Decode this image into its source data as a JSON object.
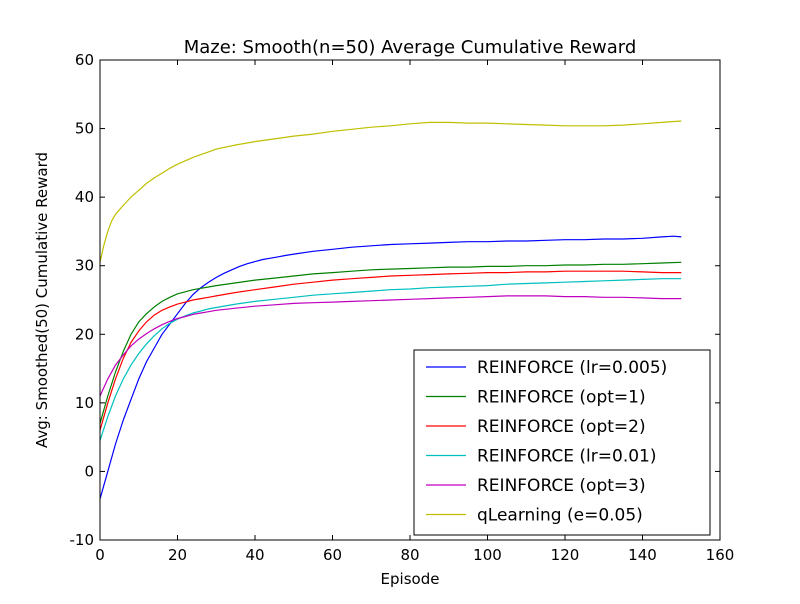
{
  "chart_data": {
    "type": "line",
    "title": "Maze: Smooth(n=50) Average Cumulative Reward",
    "xlabel": "Episode",
    "ylabel": "Avg: Smoothed(50) Cumulative Reward",
    "xlim": [
      0,
      160
    ],
    "ylim": [
      -10,
      60
    ],
    "xticks": [
      0,
      20,
      40,
      60,
      80,
      100,
      120,
      140,
      160
    ],
    "yticks": [
      -10,
      0,
      10,
      20,
      30,
      40,
      50,
      60
    ],
    "grid": false,
    "legend_position": "lower-right",
    "series": [
      {
        "name": "REINFORCE (lr=0.005)",
        "color": "#0000ff",
        "x": [
          0,
          2,
          4,
          6,
          8,
          10,
          12,
          14,
          16,
          18,
          20,
          22,
          24,
          26,
          28,
          30,
          32,
          34,
          36,
          38,
          40,
          42,
          44,
          46,
          48,
          50,
          55,
          60,
          65,
          70,
          75,
          80,
          85,
          90,
          95,
          100,
          105,
          110,
          115,
          120,
          125,
          130,
          135,
          140,
          145,
          148,
          150
        ],
        "y": [
          -4,
          0,
          4,
          7.5,
          10.5,
          13.5,
          16,
          18,
          20,
          21.5,
          23,
          24.5,
          25.8,
          26.8,
          27.6,
          28.3,
          28.9,
          29.4,
          29.9,
          30.3,
          30.6,
          30.9,
          31.1,
          31.3,
          31.5,
          31.7,
          32.1,
          32.4,
          32.7,
          32.9,
          33.1,
          33.2,
          33.3,
          33.4,
          33.5,
          33.5,
          33.6,
          33.6,
          33.7,
          33.8,
          33.8,
          33.9,
          33.9,
          34,
          34.2,
          34.3,
          34.2
        ]
      },
      {
        "name": "REINFORCE (opt=1)",
        "color": "#008000",
        "x": [
          0,
          2,
          4,
          6,
          8,
          10,
          12,
          14,
          16,
          18,
          20,
          22,
          24,
          26,
          28,
          30,
          35,
          40,
          45,
          50,
          55,
          60,
          65,
          70,
          75,
          80,
          85,
          90,
          95,
          100,
          105,
          110,
          115,
          120,
          125,
          130,
          135,
          140,
          145,
          150
        ],
        "y": [
          7,
          11,
          14.5,
          17.5,
          20,
          21.8,
          23,
          24,
          24.8,
          25.4,
          25.9,
          26.2,
          26.5,
          26.7,
          26.9,
          27.1,
          27.5,
          27.9,
          28.2,
          28.5,
          28.8,
          29,
          29.2,
          29.4,
          29.5,
          29.6,
          29.7,
          29.8,
          29.8,
          29.9,
          29.9,
          30,
          30,
          30.1,
          30.1,
          30.2,
          30.2,
          30.3,
          30.4,
          30.5
        ]
      },
      {
        "name": "REINFORCE (opt=2)",
        "color": "#ff0000",
        "x": [
          0,
          2,
          4,
          6,
          8,
          10,
          12,
          14,
          16,
          18,
          20,
          22,
          24,
          26,
          28,
          30,
          35,
          40,
          45,
          50,
          55,
          60,
          65,
          70,
          75,
          80,
          85,
          90,
          95,
          100,
          105,
          110,
          115,
          120,
          125,
          130,
          135,
          140,
          145,
          150
        ],
        "y": [
          6,
          10,
          13.5,
          16.5,
          18.8,
          20.5,
          21.8,
          22.8,
          23.5,
          24,
          24.4,
          24.7,
          25,
          25.2,
          25.4,
          25.6,
          26.1,
          26.5,
          26.9,
          27.3,
          27.6,
          27.9,
          28.1,
          28.3,
          28.5,
          28.6,
          28.7,
          28.8,
          28.9,
          29,
          29,
          29.1,
          29.1,
          29.2,
          29.2,
          29.2,
          29.2,
          29.1,
          29,
          29
        ]
      },
      {
        "name": "REINFORCE (lr=0.01)",
        "color": "#00bfbf",
        "x": [
          0,
          2,
          4,
          6,
          8,
          10,
          12,
          14,
          16,
          18,
          20,
          22,
          24,
          26,
          28,
          30,
          35,
          40,
          45,
          50,
          55,
          60,
          65,
          70,
          75,
          80,
          85,
          90,
          95,
          100,
          105,
          110,
          115,
          120,
          125,
          130,
          135,
          140,
          145,
          150
        ],
        "y": [
          4.5,
          8,
          11,
          13.5,
          15.5,
          17.2,
          18.6,
          19.8,
          20.8,
          21.6,
          22.2,
          22.7,
          23.1,
          23.4,
          23.7,
          23.9,
          24.4,
          24.8,
          25.1,
          25.4,
          25.7,
          25.9,
          26.1,
          26.3,
          26.5,
          26.6,
          26.8,
          26.9,
          27,
          27.1,
          27.3,
          27.4,
          27.5,
          27.6,
          27.7,
          27.8,
          27.9,
          28,
          28.1,
          28.1
        ]
      },
      {
        "name": "REINFORCE (opt=3)",
        "color": "#bf00bf",
        "x": [
          0,
          2,
          4,
          6,
          8,
          10,
          12,
          14,
          16,
          18,
          20,
          22,
          24,
          26,
          28,
          30,
          35,
          40,
          45,
          50,
          55,
          60,
          65,
          70,
          75,
          80,
          85,
          90,
          95,
          100,
          105,
          110,
          115,
          120,
          125,
          130,
          135,
          140,
          145,
          150
        ],
        "y": [
          11,
          13.5,
          15.5,
          17,
          18.3,
          19.3,
          20.1,
          20.8,
          21.4,
          21.9,
          22.3,
          22.6,
          22.9,
          23.1,
          23.3,
          23.5,
          23.8,
          24.1,
          24.3,
          24.5,
          24.6,
          24.7,
          24.8,
          24.9,
          25,
          25.1,
          25.2,
          25.3,
          25.4,
          25.5,
          25.6,
          25.6,
          25.6,
          25.5,
          25.5,
          25.4,
          25.4,
          25.3,
          25.2,
          25.2
        ]
      },
      {
        "name": "qLearning (e=0.05)",
        "color": "#bfbf00",
        "x": [
          0,
          1,
          2,
          3,
          4,
          6,
          8,
          10,
          12,
          14,
          16,
          18,
          20,
          22,
          24,
          26,
          28,
          30,
          35,
          40,
          45,
          50,
          55,
          60,
          65,
          70,
          75,
          80,
          85,
          90,
          95,
          100,
          105,
          110,
          115,
          120,
          125,
          130,
          135,
          140,
          145,
          150
        ],
        "y": [
          30.5,
          33,
          35,
          36.5,
          37.5,
          38.8,
          40,
          41,
          42,
          42.8,
          43.5,
          44.2,
          44.8,
          45.3,
          45.8,
          46.2,
          46.6,
          47,
          47.6,
          48.1,
          48.5,
          48.9,
          49.2,
          49.6,
          49.9,
          50.2,
          50.4,
          50.7,
          50.9,
          50.9,
          50.8,
          50.8,
          50.7,
          50.6,
          50.5,
          50.4,
          50.4,
          50.4,
          50.5,
          50.7,
          50.9,
          51.1
        ]
      }
    ]
  }
}
